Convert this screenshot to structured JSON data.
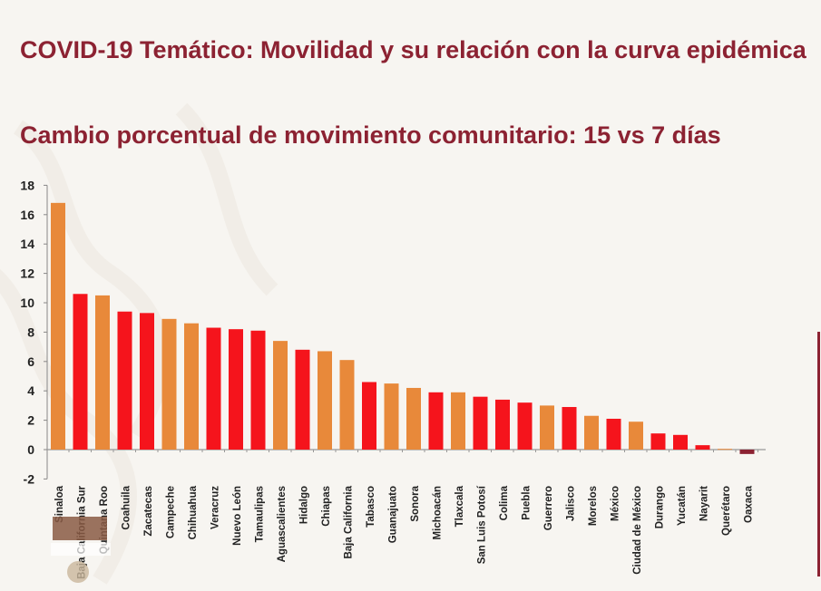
{
  "header": {
    "title": "COVID-19 Temático: Movilidad y su relación con la curva epidémica",
    "subtitle": "Cambio porcentual de movimiento comunitario: 15 vs 7 días"
  },
  "colors": {
    "title": "#8c2232",
    "orange": "#e8893a",
    "red": "#f5141c",
    "negative": "#8c2232"
  },
  "chart_data": {
    "type": "bar",
    "title": "Cambio porcentual de movimiento comunitario: 15 vs 7 días",
    "xlabel": "",
    "ylabel": "",
    "ylim": [
      -2,
      18
    ],
    "yticks": [
      -2,
      0,
      2,
      4,
      6,
      8,
      10,
      12,
      14,
      16,
      18
    ],
    "grid": false,
    "categories": [
      "Sinaloa",
      "Baja California Sur",
      "Quintana Roo",
      "Coahuila",
      "Zacatecas",
      "Campeche",
      "Chihuahua",
      "Veracruz",
      "Nuevo León",
      "Tamaulipas",
      "Aguascalientes",
      "Hidalgo",
      "Chiapas",
      "Baja California",
      "Tabasco",
      "Guanajuato",
      "Sonora",
      "Michoacán",
      "Tlaxcala",
      "San Luis Potosí",
      "Colima",
      "Puebla",
      "Guerrero",
      "Jalisco",
      "Morelos",
      "México",
      "Ciudad de México",
      "Durango",
      "Yucatán",
      "Nayarit",
      "Querétaro",
      "Oaxaca"
    ],
    "values": [
      16.8,
      10.6,
      10.5,
      9.4,
      9.3,
      8.9,
      8.6,
      8.3,
      8.2,
      8.1,
      7.4,
      6.8,
      6.7,
      6.1,
      4.6,
      4.5,
      4.2,
      3.9,
      3.9,
      3.6,
      3.4,
      3.2,
      3.0,
      2.9,
      2.3,
      2.1,
      1.9,
      1.1,
      1.0,
      0.3,
      0.05,
      -0.3
    ],
    "bar_colors": [
      "orange",
      "red",
      "orange",
      "red",
      "red",
      "orange",
      "orange",
      "red",
      "red",
      "red",
      "orange",
      "red",
      "orange",
      "orange",
      "red",
      "orange",
      "orange",
      "red",
      "orange",
      "red",
      "red",
      "red",
      "orange",
      "red",
      "orange",
      "red",
      "orange",
      "red",
      "red",
      "red",
      "orange",
      "negative"
    ]
  }
}
